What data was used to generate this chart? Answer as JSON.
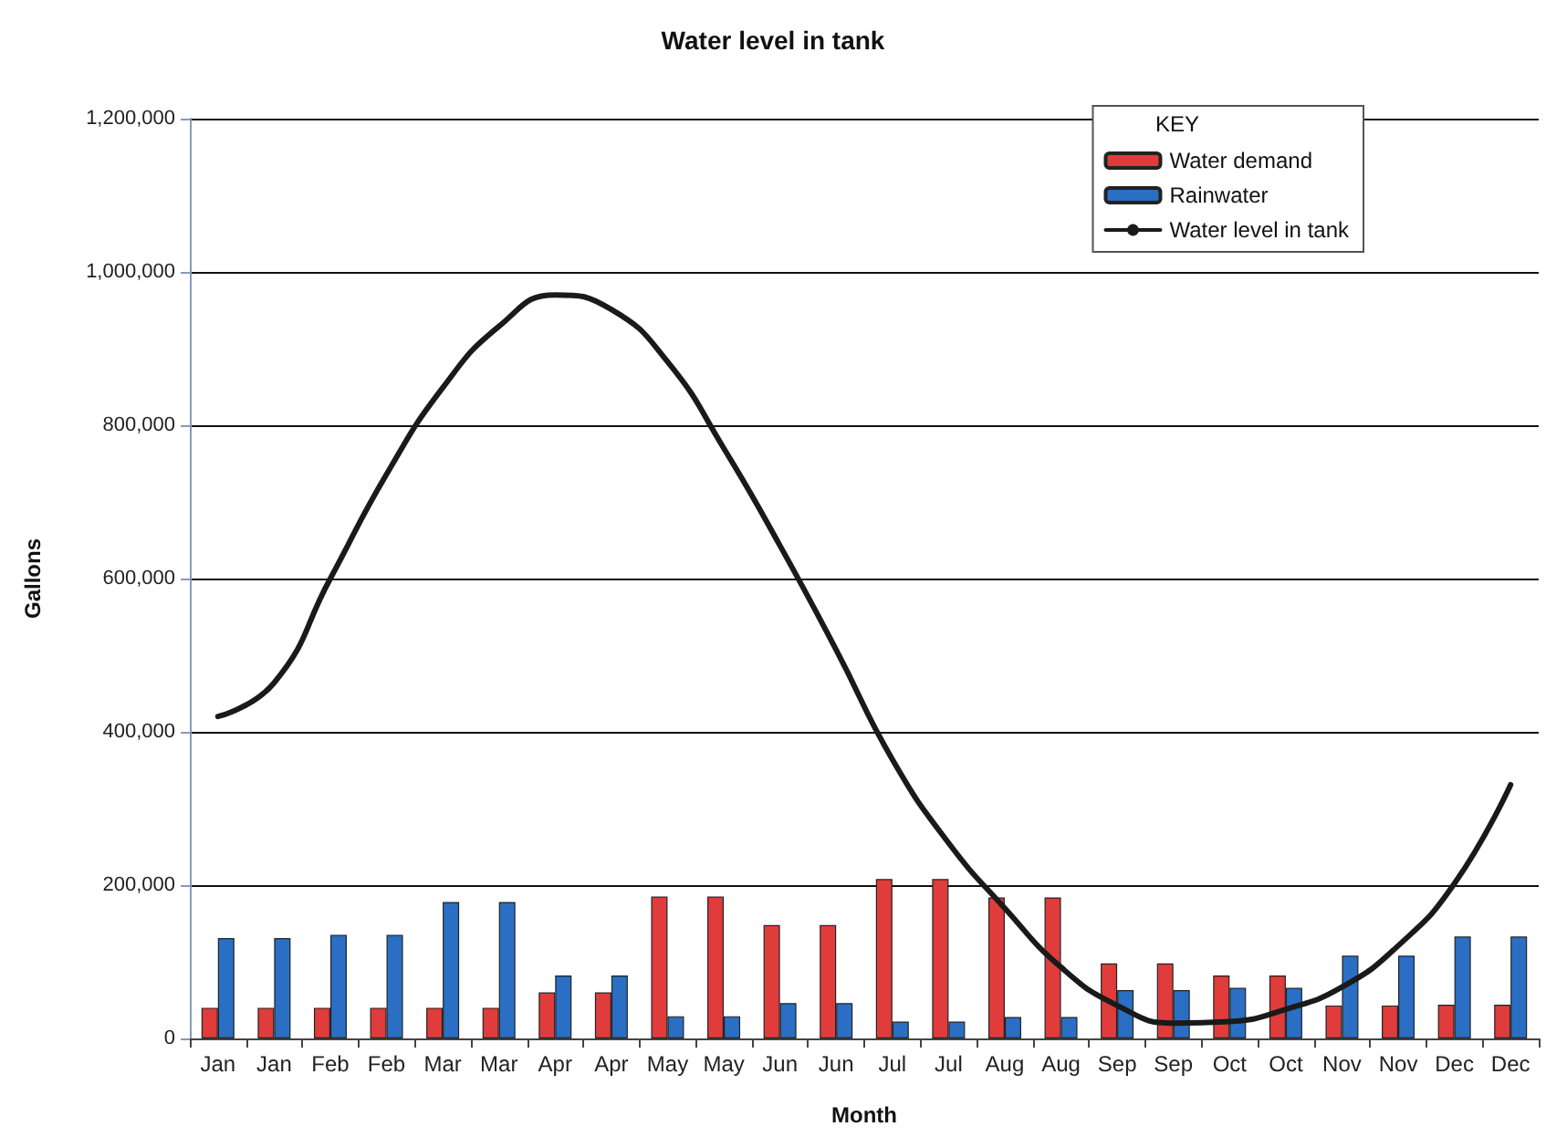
{
  "chart_data": {
    "type": "bar",
    "title": "Water level in tank",
    "xlabel": "Month",
    "ylabel": "Gallons",
    "legend_title": "KEY",
    "categories": [
      "Jan",
      "Jan",
      "Feb",
      "Feb",
      "Mar",
      "Mar",
      "Apr",
      "Apr",
      "May",
      "May",
      "Jun",
      "Jun",
      "Jul",
      "Jul",
      "Aug",
      "Aug",
      "Sep",
      "Sep",
      "Oct",
      "Oct",
      "Nov",
      "Nov",
      "Dec",
      "Dec"
    ],
    "series": [
      {
        "name": "Water demand",
        "color": "#e03c3c",
        "values": [
          40000,
          40000,
          40000,
          40000,
          40000,
          40000,
          60000,
          60000,
          185000,
          185000,
          148000,
          148000,
          208000,
          208000,
          184000,
          184000,
          98000,
          98000,
          82000,
          82000,
          43000,
          43000,
          44000,
          44000
        ]
      },
      {
        "name": "Rainwater",
        "color": "#2a6fc4",
        "values": [
          131000,
          131000,
          135000,
          135000,
          178000,
          178000,
          82000,
          82000,
          29000,
          29000,
          46000,
          46000,
          22000,
          22000,
          28000,
          28000,
          63000,
          63000,
          66000,
          66000,
          108000,
          108000,
          133000,
          133000
        ]
      },
      {
        "name": "Water level in tank",
        "type": "line",
        "color": "#1a1a1a",
        "marker": "none",
        "line_style": "solid",
        "values": [
          420000,
          464000,
          600000,
          736000,
          849000,
          929000,
          970000,
          951000,
          883000,
          770000,
          643000,
          507000,
          364000,
          255000,
          170000,
          93000,
          43000,
          20000,
          22000,
          38000,
          67000,
          121000,
          202000,
          331000
        ]
      }
    ],
    "ylim": [
      0,
      1200000
    ],
    "yticks": [
      {
        "value": 0,
        "label": "0"
      },
      {
        "value": 200000,
        "label": "200,000"
      },
      {
        "value": 400000,
        "label": "400,000"
      },
      {
        "value": 600000,
        "label": "600,000"
      },
      {
        "value": 800000,
        "label": "800,000"
      },
      {
        "value": 1000000,
        "label": "1,000,000"
      },
      {
        "value": 1200000,
        "label": "1,200,000"
      }
    ],
    "grid": "y",
    "legend": "top right"
  }
}
